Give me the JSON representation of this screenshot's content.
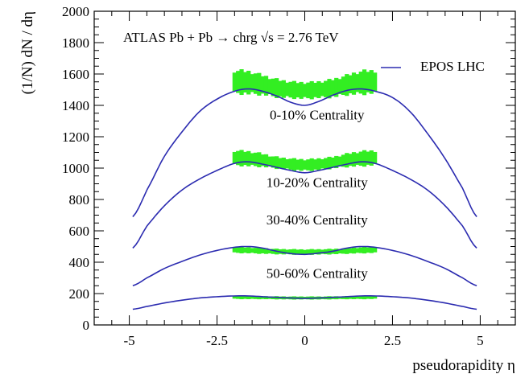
{
  "chart_data": {
    "type": "line",
    "annotation": "ATLAS  Pb + Pb → chrg   √s = 2.76 TeV",
    "xlabel": "pseudorapidity η",
    "ylabel": "(1/N) dN / dη",
    "xlim": [
      -6.0,
      6.0
    ],
    "ylim": [
      0,
      2000
    ],
    "x_ticks": [
      -5,
      -2.5,
      0,
      2.5,
      5
    ],
    "x_tick_labels": [
      "-5",
      "-2.5",
      "0",
      "2.5",
      "5"
    ],
    "y_ticks": [
      0,
      200,
      400,
      600,
      800,
      1000,
      1200,
      1400,
      1600,
      1800,
      2000
    ],
    "y_tick_labels": [
      "0",
      "200",
      "400",
      "600",
      "800",
      "1000",
      "1200",
      "1400",
      "1600",
      "1800",
      "2000"
    ],
    "grid": false,
    "legend": {
      "position": "top-right",
      "entries": [
        {
          "label": "EPOS LHC",
          "color": "#2b2bb0"
        }
      ]
    },
    "model_color": "#2b2bb0",
    "data_color": "#33ee22",
    "x": [
      -4.9,
      -4.5,
      -4.0,
      -3.5,
      -3.0,
      -2.5,
      -2.0,
      -1.6,
      -1.2,
      -0.8,
      -0.4,
      0.0,
      0.4,
      0.8,
      1.2,
      1.6,
      2.0,
      2.5,
      3.0,
      3.5,
      4.0,
      4.5,
      4.9
    ],
    "series": [
      {
        "label": "0-10% Centrality",
        "label_pos": [
          0.35,
          1310
        ],
        "values": [
          690,
          860,
          1075,
          1230,
          1360,
          1440,
          1490,
          1505,
          1490,
          1460,
          1420,
          1400,
          1425,
          1465,
          1495,
          1505,
          1490,
          1450,
          1360,
          1220,
          1060,
          870,
          690
        ],
        "measured": {
          "x_range": [
            -2.0,
            2.0
          ],
          "values": [
            1550,
            1545,
            1530,
            1510,
            1500,
            1495,
            1500,
            1510,
            1530,
            1545,
            1550
          ],
          "uncertainty": [
            70,
            70,
            60,
            55,
            50,
            50,
            50,
            55,
            60,
            70,
            70
          ]
        }
      },
      {
        "label": "10-20% Centrality",
        "label_pos": [
          0.35,
          880
        ],
        "values": [
          490,
          630,
          760,
          860,
          930,
          985,
          1030,
          1040,
          1025,
          1005,
          985,
          970,
          985,
          1005,
          1025,
          1040,
          1030,
          985,
          930,
          860,
          760,
          630,
          490
        ],
        "measured": {
          "x_range": [
            -2.0,
            2.0
          ],
          "values": [
            1065,
            1060,
            1050,
            1035,
            1025,
            1020,
            1025,
            1035,
            1050,
            1060,
            1065
          ],
          "uncertainty": [
            45,
            45,
            40,
            35,
            35,
            35,
            35,
            35,
            40,
            45,
            45
          ]
        }
      },
      {
        "label": "30-40% Centrality",
        "label_pos": [
          0.35,
          640
        ],
        "values": [
          250,
          300,
          360,
          405,
          445,
          475,
          495,
          500,
          490,
          470,
          455,
          450,
          458,
          470,
          490,
          500,
          495,
          475,
          445,
          405,
          360,
          300,
          250
        ],
        "measured": {
          "x_range": [
            -2.0,
            2.0
          ],
          "values": [
            478,
            476,
            472,
            468,
            466,
            465,
            466,
            468,
            472,
            476,
            478
          ],
          "uncertainty": [
            18,
            18,
            17,
            16,
            16,
            16,
            16,
            16,
            17,
            18,
            18
          ]
        }
      },
      {
        "label": "50-60% Centrality",
        "label_pos": [
          0.35,
          300
        ],
        "values": [
          100,
          118,
          140,
          158,
          172,
          180,
          185,
          185,
          180,
          176,
          172,
          170,
          172,
          176,
          180,
          185,
          185,
          180,
          172,
          158,
          140,
          118,
          100
        ],
        "measured": {
          "x_range": [
            -2.0,
            2.0
          ],
          "values": [
            176,
            175,
            174,
            173,
            172,
            172,
            172,
            173,
            174,
            175,
            176
          ],
          "uncertainty": [
            10,
            10,
            9,
            9,
            9,
            9,
            9,
            9,
            9,
            10,
            10
          ]
        }
      }
    ]
  }
}
